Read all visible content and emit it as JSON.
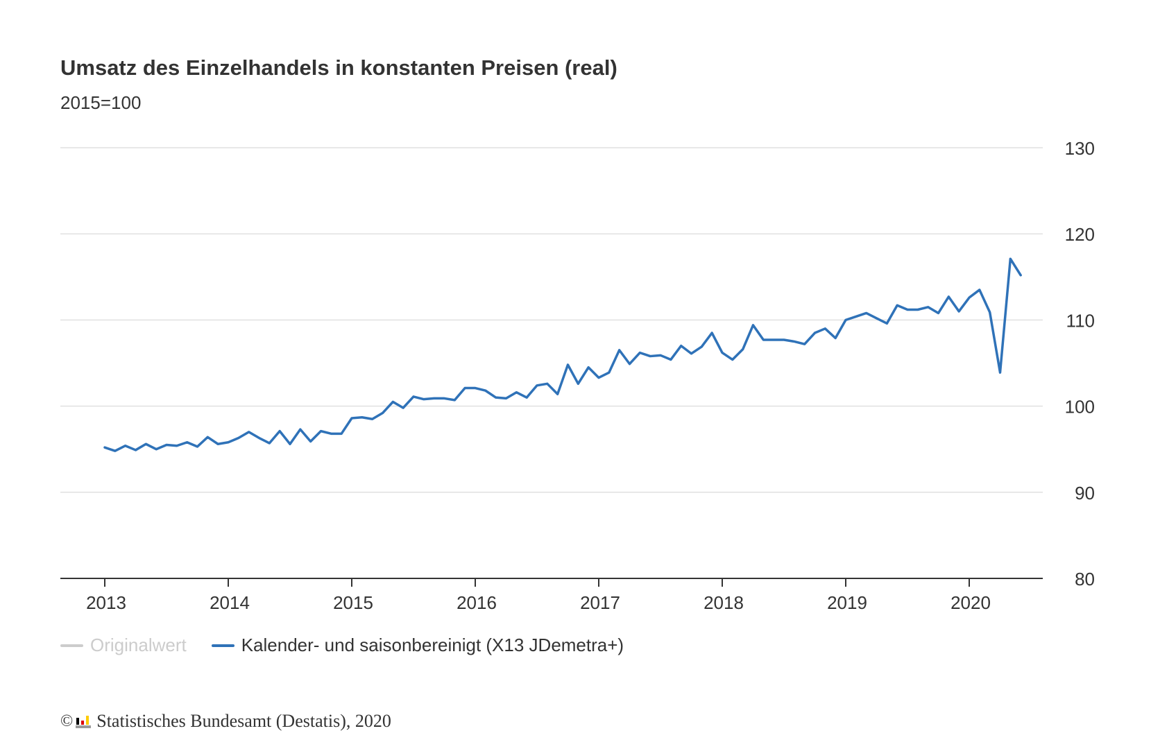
{
  "colors": {
    "series_adjusted": "#2f72b8",
    "series_original_disabled": "#cccccc",
    "grid": "#e0e0e0",
    "axis": "#333333",
    "text": "#333333"
  },
  "credit": {
    "copyright_symbol": "©",
    "logo_icon": "destatis-logo-icon",
    "text": "Statistisches Bundesamt (Destatis), 2020"
  },
  "chart_data": {
    "type": "line",
    "title": "Umsatz des Einzelhandels in konstanten Preisen (real)",
    "subtitle": "2015=100",
    "xlabel": "",
    "ylabel": "",
    "x_range": [
      "2013-01",
      "2020-06"
    ],
    "x_ticks": [
      "2013",
      "2014",
      "2015",
      "2016",
      "2017",
      "2018",
      "2019",
      "2020"
    ],
    "ylim": [
      80,
      130
    ],
    "y_ticks": [
      80,
      90,
      100,
      110,
      120,
      130
    ],
    "y_axis_position": "right",
    "grid": true,
    "legend_position": "bottom-left",
    "series": [
      {
        "name": "Originalwert",
        "visible": false,
        "points": []
      },
      {
        "name": "Kalender- und saisonbereinigt (X13 JDemetra+)",
        "visible": true,
        "points": [
          [
            "2013-01",
            95.2
          ],
          [
            "2013-02",
            94.8
          ],
          [
            "2013-03",
            95.4
          ],
          [
            "2013-04",
            94.9
          ],
          [
            "2013-05",
            95.6
          ],
          [
            "2013-06",
            95.0
          ],
          [
            "2013-07",
            95.5
          ],
          [
            "2013-08",
            95.4
          ],
          [
            "2013-09",
            95.8
          ],
          [
            "2013-10",
            95.3
          ],
          [
            "2013-11",
            96.4
          ],
          [
            "2013-12",
            95.6
          ],
          [
            "2014-01",
            95.8
          ],
          [
            "2014-02",
            96.3
          ],
          [
            "2014-03",
            97.0
          ],
          [
            "2014-04",
            96.3
          ],
          [
            "2014-05",
            95.7
          ],
          [
            "2014-06",
            97.1
          ],
          [
            "2014-07",
            95.6
          ],
          [
            "2014-08",
            97.3
          ],
          [
            "2014-09",
            95.9
          ],
          [
            "2014-10",
            97.1
          ],
          [
            "2014-11",
            96.8
          ],
          [
            "2014-12",
            96.8
          ],
          [
            "2015-01",
            98.6
          ],
          [
            "2015-02",
            98.7
          ],
          [
            "2015-03",
            98.5
          ],
          [
            "2015-04",
            99.2
          ],
          [
            "2015-05",
            100.5
          ],
          [
            "2015-06",
            99.8
          ],
          [
            "2015-07",
            101.1
          ],
          [
            "2015-08",
            100.8
          ],
          [
            "2015-09",
            100.9
          ],
          [
            "2015-10",
            100.9
          ],
          [
            "2015-11",
            100.7
          ],
          [
            "2015-12",
            102.1
          ],
          [
            "2016-01",
            102.1
          ],
          [
            "2016-02",
            101.8
          ],
          [
            "2016-03",
            101.0
          ],
          [
            "2016-04",
            100.9
          ],
          [
            "2016-05",
            101.6
          ],
          [
            "2016-06",
            101.0
          ],
          [
            "2016-07",
            102.4
          ],
          [
            "2016-08",
            102.6
          ],
          [
            "2016-09",
            101.4
          ],
          [
            "2016-10",
            104.8
          ],
          [
            "2016-11",
            102.6
          ],
          [
            "2016-12",
            104.5
          ],
          [
            "2017-01",
            103.3
          ],
          [
            "2017-02",
            103.9
          ],
          [
            "2017-03",
            106.5
          ],
          [
            "2017-04",
            104.9
          ],
          [
            "2017-05",
            106.2
          ],
          [
            "2017-06",
            105.8
          ],
          [
            "2017-07",
            105.9
          ],
          [
            "2017-08",
            105.4
          ],
          [
            "2017-09",
            107.0
          ],
          [
            "2017-10",
            106.1
          ],
          [
            "2017-11",
            106.9
          ],
          [
            "2017-12",
            108.5
          ],
          [
            "2018-01",
            106.2
          ],
          [
            "2018-02",
            105.4
          ],
          [
            "2018-03",
            106.6
          ],
          [
            "2018-04",
            109.4
          ],
          [
            "2018-05",
            107.7
          ],
          [
            "2018-06",
            107.7
          ],
          [
            "2018-07",
            107.7
          ],
          [
            "2018-08",
            107.5
          ],
          [
            "2018-09",
            107.2
          ],
          [
            "2018-10",
            108.5
          ],
          [
            "2018-11",
            109.0
          ],
          [
            "2018-12",
            107.9
          ],
          [
            "2019-01",
            110.0
          ],
          [
            "2019-02",
            110.4
          ],
          [
            "2019-03",
            110.8
          ],
          [
            "2019-04",
            110.2
          ],
          [
            "2019-05",
            109.6
          ],
          [
            "2019-06",
            111.7
          ],
          [
            "2019-07",
            111.2
          ],
          [
            "2019-08",
            111.2
          ],
          [
            "2019-09",
            111.5
          ],
          [
            "2019-10",
            110.8
          ],
          [
            "2019-11",
            112.7
          ],
          [
            "2019-12",
            111.0
          ],
          [
            "2020-01",
            112.6
          ],
          [
            "2020-02",
            113.5
          ],
          [
            "2020-03",
            110.9
          ],
          [
            "2020-04",
            103.9
          ],
          [
            "2020-05",
            117.1
          ],
          [
            "2020-06",
            115.2
          ]
        ]
      }
    ]
  }
}
